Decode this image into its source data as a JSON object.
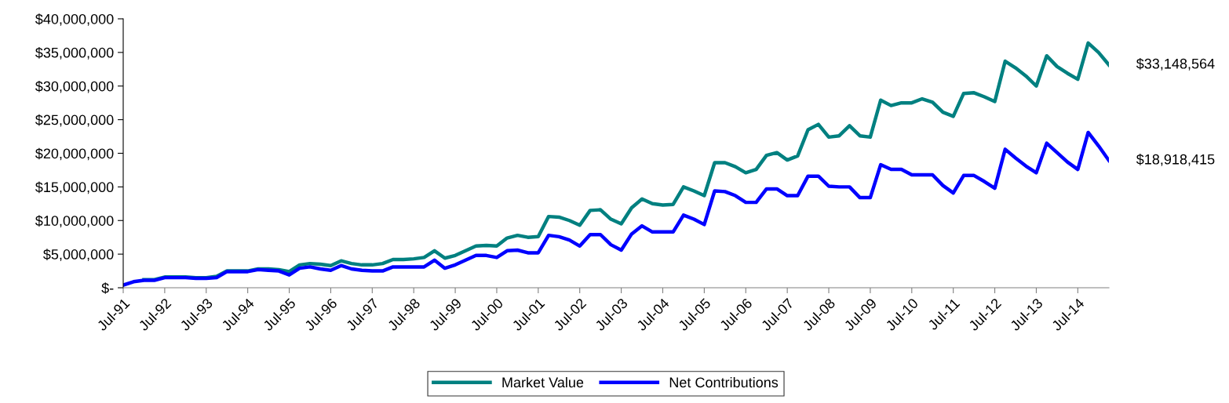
{
  "chart_data": {
    "type": "line",
    "categories": [
      "Jul-91",
      null,
      null,
      null,
      "Jul-92",
      null,
      null,
      null,
      "Jul-93",
      null,
      null,
      null,
      "Jul-94",
      null,
      null,
      null,
      "Jul-95",
      null,
      null,
      null,
      "Jul-96",
      null,
      null,
      null,
      "Jul-97",
      null,
      null,
      null,
      "Jul-98",
      null,
      null,
      null,
      "Jul-99",
      null,
      null,
      null,
      "Jul-00",
      null,
      null,
      null,
      "Jul-01",
      null,
      null,
      null,
      "Jul-02",
      null,
      null,
      null,
      "Jul-03",
      null,
      null,
      null,
      "Jul-04",
      null,
      null,
      null,
      "Jul-05",
      null,
      null,
      null,
      "Jul-06",
      null,
      null,
      null,
      "Jul-07",
      null,
      null,
      null,
      "Jul-08",
      null,
      null,
      null,
      "Jul-09",
      null,
      null,
      null,
      "Jul-10",
      null,
      null,
      null,
      "Jul-11",
      null,
      null,
      null,
      "Jul-12",
      null,
      null,
      null,
      "Jul-13",
      null,
      null,
      null,
      "Jul-14",
      null,
      null,
      null
    ],
    "series": [
      {
        "name": "Market Value",
        "color": "#008080",
        "values": [
          null,
          null,
          1200000,
          1200000,
          1600000,
          1600000,
          1600000,
          1500000,
          1500000,
          1700000,
          2500000,
          2500000,
          2500000,
          2800000,
          2800000,
          2700000,
          2400000,
          3400000,
          3600000,
          3500000,
          3300000,
          4000000,
          3600000,
          3400000,
          3400000,
          3600000,
          4200000,
          4200000,
          4300000,
          4500000,
          5500000,
          4400000,
          4800000,
          5500000,
          6200000,
          6300000,
          6200000,
          7400000,
          7800000,
          7500000,
          7600000,
          10600000,
          10500000,
          10000000,
          9300000,
          11500000,
          11600000,
          10200000,
          9500000,
          11900000,
          13200000,
          12500000,
          12300000,
          12400000,
          15000000,
          14400000,
          13700000,
          18600000,
          18600000,
          18000000,
          17100000,
          17600000,
          19700000,
          20100000,
          19000000,
          19600000,
          23500000,
          24300000,
          22400000,
          22600000,
          24100000,
          22600000,
          22400000,
          27900000,
          27100000,
          27500000,
          27500000,
          28100000,
          27600000,
          26100000,
          25500000,
          28900000,
          29000000,
          28400000,
          27700000,
          33700000,
          32700000,
          31500000,
          30000000,
          34500000,
          32900000,
          31900000,
          31000000,
          36400000,
          35000000,
          33148564
        ]
      },
      {
        "name": "Net Contributions",
        "color": "#0000ff",
        "values": [
          400000,
          900000,
          1100000,
          1100000,
          1500000,
          1500000,
          1500000,
          1400000,
          1400000,
          1500000,
          2400000,
          2400000,
          2400000,
          2700000,
          2600000,
          2500000,
          1900000,
          2900000,
          3100000,
          2800000,
          2600000,
          3300000,
          2800000,
          2600000,
          2500000,
          2500000,
          3100000,
          3100000,
          3100000,
          3100000,
          4100000,
          2900000,
          3400000,
          4100000,
          4800000,
          4800000,
          4500000,
          5500000,
          5600000,
          5200000,
          5200000,
          7800000,
          7600000,
          7100000,
          6200000,
          7900000,
          7900000,
          6400000,
          5600000,
          8000000,
          9200000,
          8300000,
          8300000,
          8300000,
          10800000,
          10200000,
          9400000,
          14400000,
          14300000,
          13700000,
          12700000,
          12700000,
          14700000,
          14700000,
          13700000,
          13700000,
          16600000,
          16600000,
          15100000,
          15000000,
          15000000,
          13400000,
          13400000,
          18300000,
          17600000,
          17600000,
          16800000,
          16800000,
          16800000,
          15200000,
          14100000,
          16700000,
          16700000,
          15800000,
          14800000,
          20600000,
          19300000,
          18100000,
          17100000,
          21500000,
          20100000,
          18700000,
          17600000,
          23100000,
          21100000,
          18918415
        ]
      }
    ],
    "ylim": [
      0,
      40000000
    ],
    "yticks": [
      {
        "value": 0,
        "label": "$-"
      },
      {
        "value": 5000000,
        "label": "$5,000,000"
      },
      {
        "value": 10000000,
        "label": "$10,000,000"
      },
      {
        "value": 15000000,
        "label": "$15,000,000"
      },
      {
        "value": 20000000,
        "label": "$20,000,000"
      },
      {
        "value": 25000000,
        "label": "$25,000,000"
      },
      {
        "value": 30000000,
        "label": "$30,000,000"
      },
      {
        "value": 35000000,
        "label": "$35,000,000"
      },
      {
        "value": 40000000,
        "label": "$40,000,000"
      }
    ],
    "annotations": [
      "$33,148,564",
      "$18,918,415"
    ],
    "legend": "bottom",
    "grid": false,
    "marker": "none",
    "line_style": "solid"
  }
}
